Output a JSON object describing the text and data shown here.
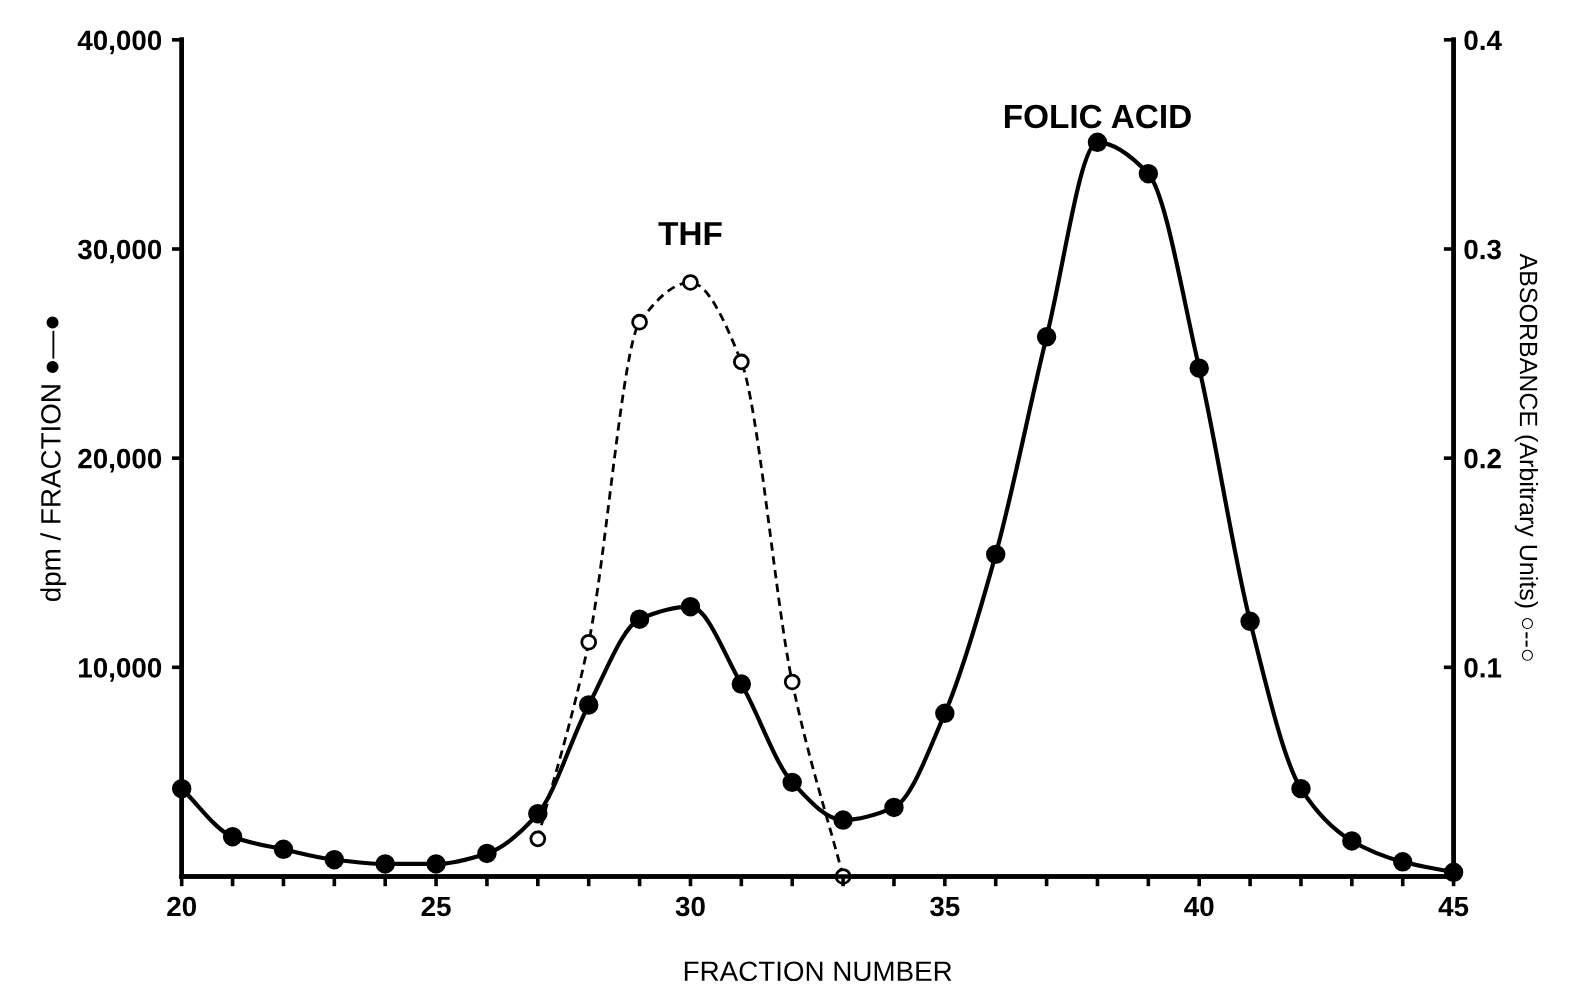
{
  "chart_data": {
    "type": "line",
    "xlabel": "FRACTION NUMBER",
    "ylabel": "dpm / FRACTION ●—●",
    "y2label": "ABSORBANCE (Arbitrary Units) ○--○",
    "xlim": [
      20,
      45
    ],
    "xticks": [
      20,
      {
        "value": 21,
        "label": null
      },
      {
        "value": 22,
        "label": null
      },
      {
        "value": 23,
        "label": null
      },
      {
        "value": 24,
        "label": null
      },
      25,
      {
        "value": 26,
        "label": null
      },
      {
        "value": 27,
        "label": null
      },
      {
        "value": 28,
        "label": null
      },
      {
        "value": 29,
        "label": null
      },
      30,
      {
        "value": 31,
        "label": null
      },
      {
        "value": 32,
        "label": null
      },
      {
        "value": 33,
        "label": null
      },
      {
        "value": 34,
        "label": null
      },
      35,
      {
        "value": 36,
        "label": null
      },
      {
        "value": 37,
        "label": null
      },
      {
        "value": 38,
        "label": null
      },
      {
        "value": 39,
        "label": null
      },
      40,
      {
        "value": 41,
        "label": null
      },
      {
        "value": 42,
        "label": null
      },
      {
        "value": 43,
        "label": null
      },
      {
        "value": 44,
        "label": null
      },
      45
    ],
    "ylim": [
      0,
      40000
    ],
    "yticks": [
      {
        "value": 10000,
        "label": "10,000"
      },
      {
        "value": 20000,
        "label": "20,000"
      },
      {
        "value": 30000,
        "label": "30,000"
      },
      {
        "value": 40000,
        "label": "40,000"
      }
    ],
    "y2lim": [
      0,
      0.4
    ],
    "y2ticks": [
      0.1,
      0.2,
      0.3,
      0.4
    ],
    "grid": false,
    "series": [
      {
        "color": "#000000",
        "marker": "circle",
        "line_style": "solid",
        "x": [
          20,
          21,
          22,
          23,
          24,
          25,
          26,
          27,
          28,
          29,
          30,
          31,
          32,
          33,
          34,
          35,
          36,
          37,
          38,
          39,
          40,
          41,
          42,
          43,
          44,
          45
        ],
        "values": [
          4200,
          1900,
          1300,
          800,
          600,
          600,
          1100,
          3000,
          8200,
          12300,
          12900,
          9200,
          4500,
          2700,
          3300,
          7800,
          15400,
          25800,
          35100,
          33600,
          24300,
          12200,
          4200,
          1700,
          700,
          200
        ]
      },
      {
        "color": "#000000",
        "marker": "circle",
        "line_style": "dashed",
        "axis": "y2",
        "x": [
          27,
          28,
          29,
          30,
          31,
          32,
          33
        ],
        "values": [
          0.018,
          0.112,
          0.265,
          0.284,
          0.246,
          0.093,
          0.0
        ]
      }
    ],
    "annotations": [
      "THF",
      "FOLIC ACID"
    ]
  }
}
